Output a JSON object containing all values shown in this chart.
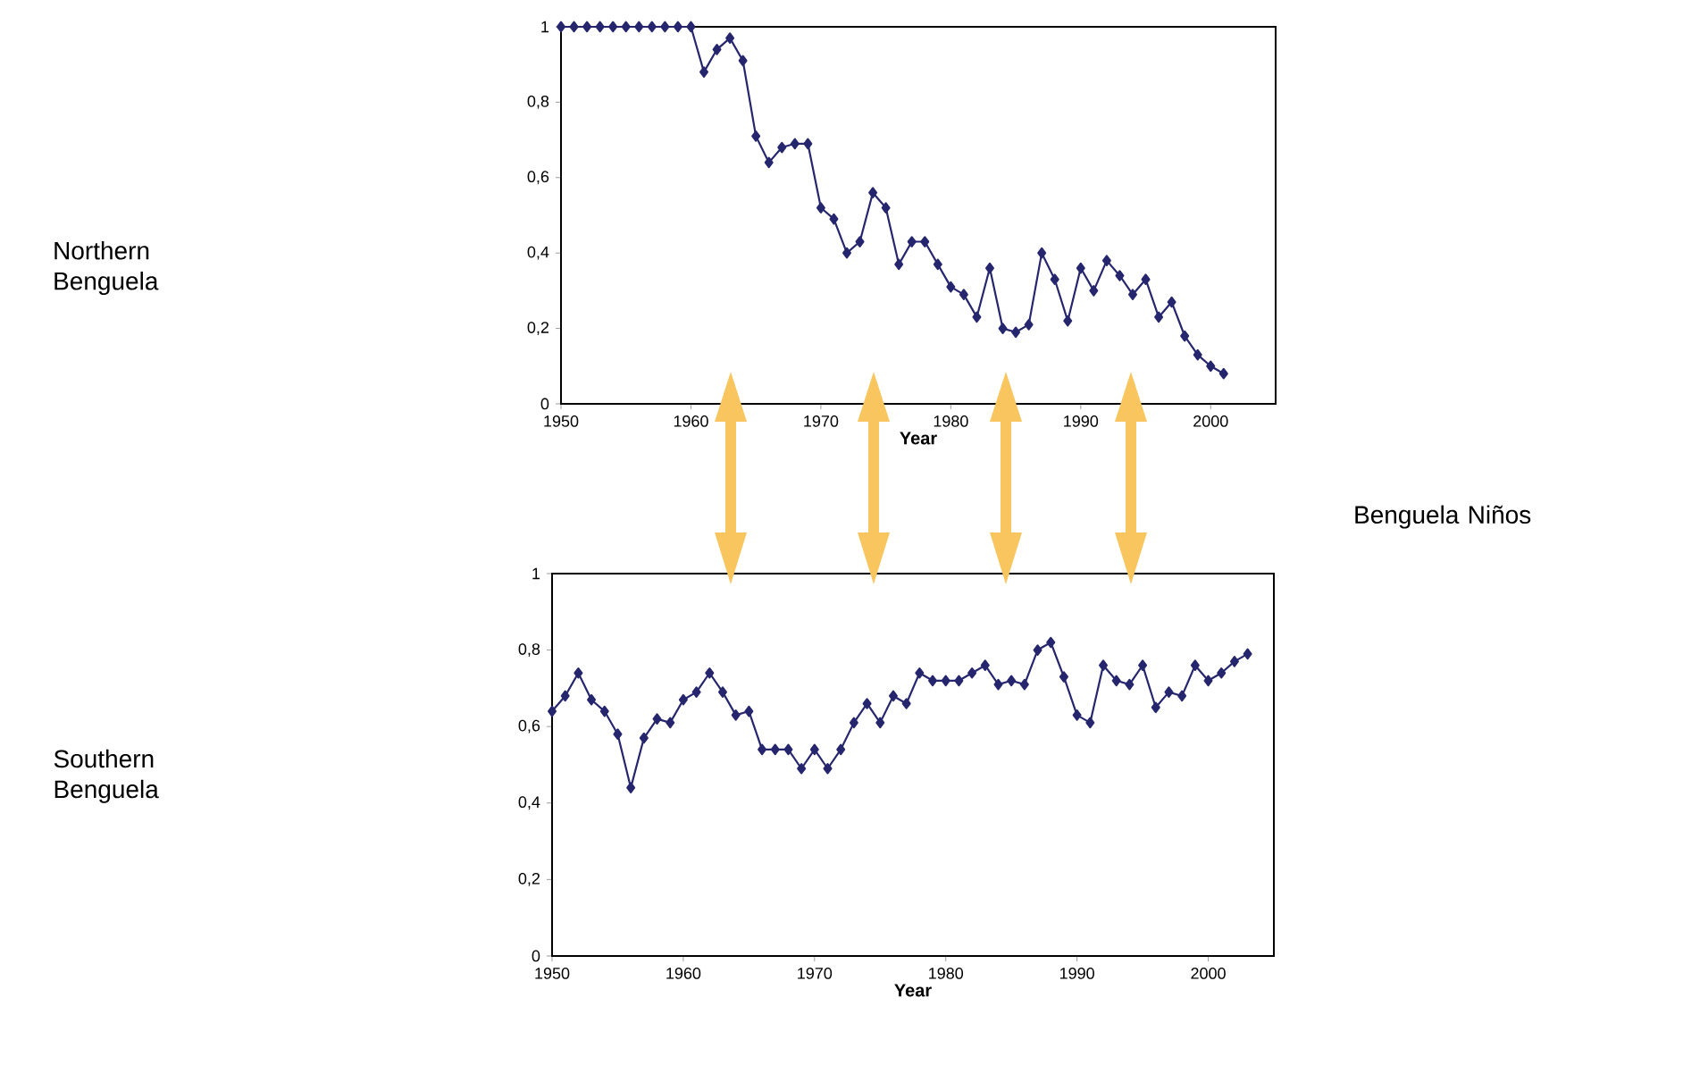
{
  "chart_data": [
    {
      "type": "line",
      "xlabel": "Year",
      "color": "#26266e",
      "marker": "diamond",
      "x": [
        1950,
        1951,
        1952,
        1953,
        1954,
        1955,
        1956,
        1957,
        1958,
        1959,
        1960,
        1961,
        1962,
        1963,
        1964,
        1965,
        1966,
        1967,
        1968,
        1969,
        1970,
        1971,
        1972,
        1973,
        1974,
        1975,
        1976,
        1977,
        1978,
        1979,
        1980,
        1981,
        1982,
        1983,
        1984,
        1985,
        1986,
        1987,
        1988,
        1989,
        1990,
        1991,
        1992,
        1993,
        1994,
        1995,
        1996,
        1997,
        1998,
        1999,
        2000,
        2001
      ],
      "values": [
        1,
        1,
        1,
        1,
        1,
        1,
        1,
        1,
        1,
        1,
        1,
        0.88,
        0.94,
        0.97,
        0.91,
        0.71,
        0.64,
        0.68,
        0.69,
        0.69,
        0.52,
        0.49,
        0.4,
        0.43,
        0.56,
        0.52,
        0.37,
        0.43,
        0.43,
        0.37,
        0.31,
        0.29,
        0.23,
        0.36,
        0.2,
        0.19,
        0.21,
        0.4,
        0.33,
        0.22,
        0.36,
        0.3,
        0.38,
        0.34,
        0.29,
        0.33,
        0.23,
        0.27,
        0.18,
        0.13,
        0.1,
        0.08
      ],
      "xlim": [
        1950,
        2005
      ],
      "xticks": [
        1950,
        1960,
        1970,
        1980,
        1990,
        2000
      ],
      "ylim": [
        0,
        1
      ],
      "yticks": [
        0,
        {
          "value": 0.2,
          "label": "0,2"
        },
        {
          "value": 0.4,
          "label": "0,4"
        },
        {
          "value": 0.6,
          "label": "0,6"
        },
        {
          "value": 0.8,
          "label": "0,8"
        },
        1
      ],
      "annotations": [
        "Northern Benguela",
        "Benguela Niños"
      ]
    },
    {
      "type": "line",
      "xlabel": "Year",
      "color": "#26266e",
      "marker": "diamond",
      "x": [
        1950,
        1951,
        1952,
        1953,
        1954,
        1955,
        1956,
        1957,
        1958,
        1959,
        1960,
        1961,
        1962,
        1963,
        1964,
        1965,
        1966,
        1967,
        1968,
        1969,
        1970,
        1971,
        1972,
        1973,
        1974,
        1975,
        1976,
        1977,
        1978,
        1979,
        1980,
        1981,
        1982,
        1983,
        1984,
        1985,
        1986,
        1987,
        1988,
        1989,
        1990,
        1991,
        1992,
        1993,
        1994,
        1995,
        1996,
        1997,
        1998,
        1999,
        2000,
        2001,
        2002,
        2003
      ],
      "values": [
        0.64,
        0.68,
        0.74,
        0.67,
        0.64,
        0.58,
        0.44,
        0.57,
        0.62,
        0.61,
        0.67,
        0.69,
        0.74,
        0.69,
        0.63,
        0.64,
        0.54,
        0.54,
        0.54,
        0.49,
        0.54,
        0.49,
        0.54,
        0.61,
        0.66,
        0.61,
        0.68,
        0.66,
        0.74,
        0.72,
        0.72,
        0.72,
        0.74,
        0.76,
        0.71,
        0.72,
        0.71,
        0.8,
        0.82,
        0.73,
        0.63,
        0.61,
        0.76,
        0.72,
        0.71,
        0.76,
        0.65,
        0.69,
        0.68,
        0.76,
        0.72,
        0.74,
        0.77,
        0.79
      ],
      "xlim": [
        1950,
        2005
      ],
      "xticks": [
        1950,
        1960,
        1970,
        1980,
        1990,
        2000
      ],
      "ylim": [
        0,
        1
      ],
      "yticks": [
        0,
        {
          "value": 0.2,
          "label": "0,2"
        },
        {
          "value": 0.4,
          "label": "0,4"
        },
        {
          "value": 0.6,
          "label": "0,6"
        },
        {
          "value": 0.8,
          "label": "0,8"
        },
        1
      ],
      "annotations": [
        "Southern Benguela"
      ]
    }
  ]
}
